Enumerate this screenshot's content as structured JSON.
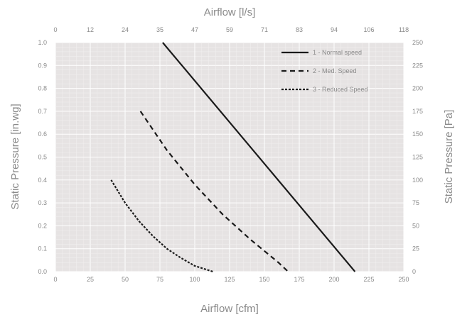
{
  "chart_data": {
    "type": "line",
    "xlabel": "Airflow [cfm]",
    "x2label": "Airflow [l/s]",
    "ylabel": "Static Pressure [in.wg]",
    "y2label": "Static Pressure [Pa]",
    "xlim": [
      0,
      250
    ],
    "ylim": [
      0,
      1.0
    ],
    "x2lim": [
      0,
      118
    ],
    "y2lim": [
      0,
      250
    ],
    "x_ticks": [
      "0",
      "25",
      "50",
      "75",
      "100",
      "125",
      "150",
      "175",
      "200",
      "225",
      "250"
    ],
    "y_ticks": [
      "0.0",
      "0.1",
      "0.2",
      "0.3",
      "0.4",
      "0.5",
      "0.6",
      "0.7",
      "0.8",
      "0.9",
      "1.0"
    ],
    "x2_ticks": [
      "0",
      "12",
      "24",
      "35",
      "47",
      "59",
      "71",
      "83",
      "94",
      "106",
      "118"
    ],
    "y2_ticks": [
      "0",
      "25",
      "50",
      "75",
      "100",
      "125",
      "150",
      "175",
      "200",
      "225",
      "250"
    ],
    "grid": true,
    "legend_position": "top-right",
    "series": [
      {
        "name": "1 - Normal speed",
        "style": "solid",
        "color": "#1a1a1a",
        "x": [
          77,
          215
        ],
        "y": [
          1.0,
          0.0
        ]
      },
      {
        "name": "2 - Med. Speed",
        "style": "dashed",
        "color": "#1a1a1a",
        "x": [
          61,
          80,
          100,
          120,
          140,
          160,
          167
        ],
        "y": [
          0.7,
          0.53,
          0.38,
          0.25,
          0.14,
          0.04,
          0.0
        ]
      },
      {
        "name": "3 - Reduced Speed",
        "style": "dotted",
        "color": "#1a1a1a",
        "x": [
          40,
          50,
          60,
          70,
          80,
          90,
          100,
          113
        ],
        "y": [
          0.4,
          0.3,
          0.22,
          0.155,
          0.1,
          0.06,
          0.025,
          0.0
        ]
      }
    ]
  }
}
